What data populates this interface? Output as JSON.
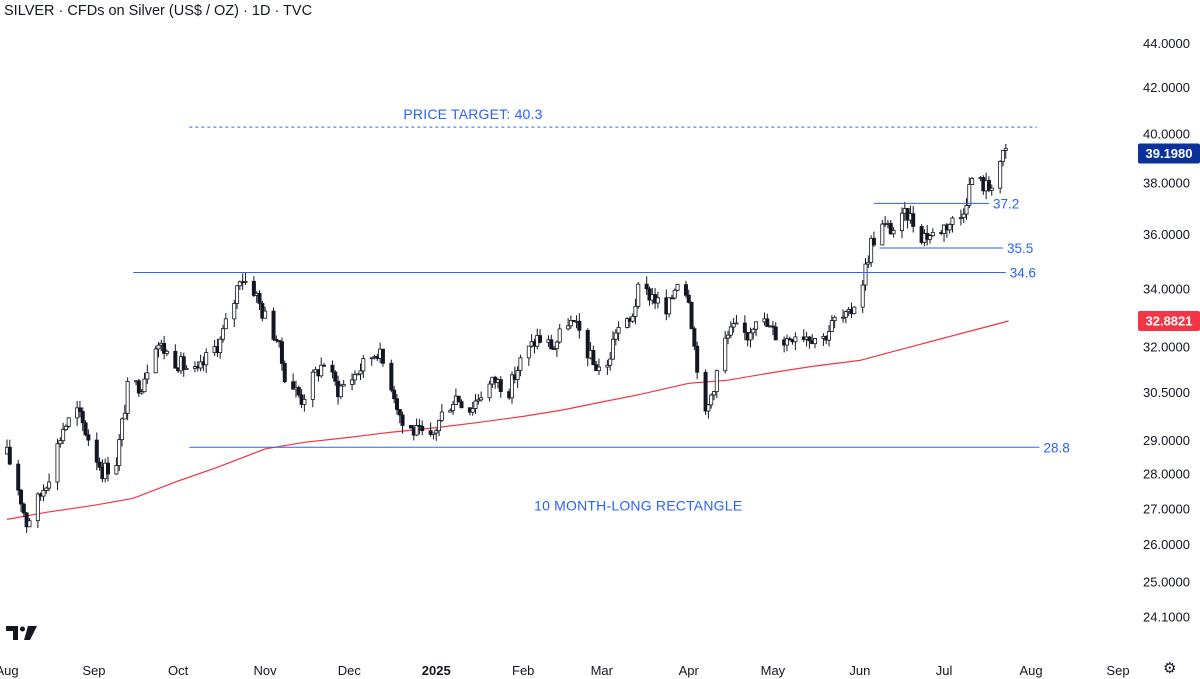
{
  "header": {
    "title": "SILVER · CFDs on Silver (US$ / OZ) · 1D · TVC"
  },
  "icons": {
    "logo": "tradingview-logo-icon",
    "settings": "settings-gear-icon"
  },
  "colors": {
    "level_line": "#2962ff",
    "ma_line": "#f23645",
    "candle": "#131722",
    "price_badge": "#0c3299",
    "ma_badge": "#f23645"
  },
  "chart_data": {
    "type": "candlestick",
    "title": "SILVER · CFDs on Silver (US$ / OZ) · 1D · TVC",
    "y_scale": "log",
    "ylim": [
      23.75,
      45.0
    ],
    "yticks": [
      "44.0000",
      "42.0000",
      "40.0000",
      "38.0000",
      "36.0000",
      "34.0000",
      "32.0000",
      "30.5000",
      "29.0000",
      "28.0000",
      "27.0000",
      "26.0000",
      "25.0000",
      "24.1000"
    ],
    "xticks": [
      {
        "label": "Aug",
        "date": "2024-08-01"
      },
      {
        "label": "Sep",
        "date": "2024-09-01"
      },
      {
        "label": "Oct",
        "date": "2024-10-01"
      },
      {
        "label": "Nov",
        "date": "2024-11-01"
      },
      {
        "label": "Dec",
        "date": "2024-12-01"
      },
      {
        "label": "2025",
        "date": "2025-01-01",
        "bold": true
      },
      {
        "label": "Feb",
        "date": "2025-02-01"
      },
      {
        "label": "Mar",
        "date": "2025-03-01"
      },
      {
        "label": "Apr",
        "date": "2025-04-01"
      },
      {
        "label": "May",
        "date": "2025-05-01"
      },
      {
        "label": "Jun",
        "date": "2025-06-01"
      },
      {
        "label": "Jul",
        "date": "2025-07-01"
      },
      {
        "label": "Aug",
        "date": "2025-08-01"
      },
      {
        "label": "Sep",
        "date": "2025-09-01"
      }
    ],
    "price_badges": [
      {
        "label": "39.1980",
        "value": 39.198,
        "color": "#0c3299"
      },
      {
        "label": "32.8821",
        "value": 32.8821,
        "color": "#f23645"
      }
    ],
    "levels": [
      {
        "label": "PRICE TARGET: 40.3",
        "value": 40.3,
        "style": "dashed",
        "from": "2024-10-05",
        "to": "2025-08-03"
      },
      {
        "label": "37.2",
        "value": 37.2,
        "style": "solid",
        "from": "2025-06-06",
        "to": "2025-07-17"
      },
      {
        "label": "35.5",
        "value": 35.5,
        "style": "solid",
        "from": "2025-06-08",
        "to": "2025-07-22"
      },
      {
        "label": "34.6",
        "value": 34.6,
        "style": "solid",
        "from": "2024-09-15",
        "to": "2025-07-23"
      },
      {
        "label": "28.8",
        "value": 28.8,
        "style": "solid",
        "from": "2024-10-05",
        "to": "2025-08-04"
      }
    ],
    "annotations": [
      {
        "text": "10 MONTH-LONG RECTANGLE",
        "date": "2024-12-22",
        "value": 27.1
      }
    ],
    "moving_average": [
      [
        "2024-08-01",
        26.7
      ],
      [
        "2024-08-15",
        26.9
      ],
      [
        "2024-09-01",
        27.1
      ],
      [
        "2024-09-15",
        27.3
      ],
      [
        "2024-10-01",
        27.8
      ],
      [
        "2024-10-15",
        28.2
      ],
      [
        "2024-11-01",
        28.75
      ],
      [
        "2024-11-15",
        28.95
      ],
      [
        "2024-12-01",
        29.1
      ],
      [
        "2024-12-15",
        29.25
      ],
      [
        "2025-01-01",
        29.4
      ],
      [
        "2025-01-15",
        29.55
      ],
      [
        "2025-02-01",
        29.75
      ],
      [
        "2025-02-15",
        29.95
      ],
      [
        "2025-03-01",
        30.2
      ],
      [
        "2025-03-15",
        30.45
      ],
      [
        "2025-04-01",
        30.8
      ],
      [
        "2025-04-15",
        30.9
      ],
      [
        "2025-05-01",
        31.15
      ],
      [
        "2025-05-15",
        31.35
      ],
      [
        "2025-06-01",
        31.55
      ],
      [
        "2025-06-15",
        31.9
      ],
      [
        "2025-07-01",
        32.3
      ],
      [
        "2025-07-24",
        32.88
      ]
    ],
    "ohlc_path": [
      [
        "2024-08-01",
        28.6
      ],
      [
        "2024-08-05",
        27.6
      ],
      [
        "2024-08-08",
        26.6
      ],
      [
        "2024-08-13",
        27.4
      ],
      [
        "2024-08-16",
        28.0
      ],
      [
        "2024-08-21",
        29.4
      ],
      [
        "2024-08-26",
        29.9
      ],
      [
        "2024-08-29",
        29.3
      ],
      [
        "2024-09-04",
        28.1
      ],
      [
        "2024-09-09",
        28.4
      ],
      [
        "2024-09-13",
        30.6
      ],
      [
        "2024-09-18",
        30.8
      ],
      [
        "2024-09-23",
        32.2
      ],
      [
        "2024-09-27",
        31.8
      ],
      [
        "2024-10-02",
        31.4
      ],
      [
        "2024-10-08",
        31.1
      ],
      [
        "2024-10-11",
        31.6
      ],
      [
        "2024-10-16",
        32.2
      ],
      [
        "2024-10-21",
        33.6
      ],
      [
        "2024-10-23",
        34.5
      ],
      [
        "2024-10-28",
        34.0
      ],
      [
        "2024-10-31",
        33.2
      ],
      [
        "2024-11-05",
        32.3
      ],
      [
        "2024-11-08",
        31.1
      ],
      [
        "2024-11-14",
        30.3
      ],
      [
        "2024-11-19",
        31.1
      ],
      [
        "2024-11-22",
        31.5
      ],
      [
        "2024-11-27",
        30.6
      ],
      [
        "2024-12-02",
        31.0
      ],
      [
        "2024-12-06",
        31.4
      ],
      [
        "2024-12-11",
        31.9
      ],
      [
        "2024-12-16",
        30.8
      ],
      [
        "2024-12-20",
        29.5
      ],
      [
        "2024-12-24",
        29.3
      ],
      [
        "2024-12-30",
        29.0
      ],
      [
        "2025-01-03",
        29.8
      ],
      [
        "2025-01-08",
        30.4
      ],
      [
        "2025-01-13",
        30.0
      ],
      [
        "2025-01-17",
        30.5
      ],
      [
        "2025-01-22",
        30.9
      ],
      [
        "2025-01-27",
        30.6
      ],
      [
        "2025-01-31",
        31.5
      ],
      [
        "2025-02-06",
        32.3
      ],
      [
        "2025-02-12",
        32.0
      ],
      [
        "2025-02-17",
        32.9
      ],
      [
        "2025-02-21",
        32.5
      ],
      [
        "2025-02-26",
        31.4
      ],
      [
        "2025-03-03",
        31.3
      ],
      [
        "2025-03-06",
        32.6
      ],
      [
        "2025-03-11",
        32.8
      ],
      [
        "2025-03-14",
        33.9
      ],
      [
        "2025-03-19",
        33.8
      ],
      [
        "2025-03-24",
        33.1
      ],
      [
        "2025-03-28",
        34.4
      ],
      [
        "2025-04-01",
        33.8
      ],
      [
        "2025-04-03",
        32.0
      ],
      [
        "2025-04-07",
        29.7
      ],
      [
        "2025-04-10",
        30.8
      ],
      [
        "2025-04-14",
        32.2
      ],
      [
        "2025-04-17",
        32.6
      ],
      [
        "2025-04-22",
        32.4
      ],
      [
        "2025-04-25",
        33.1
      ],
      [
        "2025-04-30",
        32.6
      ],
      [
        "2025-05-05",
        32.2
      ],
      [
        "2025-05-09",
        32.5
      ],
      [
        "2025-05-14",
        32.4
      ],
      [
        "2025-05-19",
        32.3
      ],
      [
        "2025-05-23",
        32.9
      ],
      [
        "2025-05-28",
        33.0
      ],
      [
        "2025-06-02",
        34.3
      ],
      [
        "2025-06-05",
        35.7
      ],
      [
        "2025-06-09",
        36.3
      ],
      [
        "2025-06-13",
        36.2
      ],
      [
        "2025-06-18",
        36.8
      ],
      [
        "2025-06-23",
        36.0
      ],
      [
        "2025-06-27",
        36.0
      ],
      [
        "2025-07-02",
        36.4
      ],
      [
        "2025-07-07",
        36.7
      ],
      [
        "2025-07-11",
        38.2
      ],
      [
        "2025-07-14",
        38.0
      ],
      [
        "2025-07-17",
        37.8
      ],
      [
        "2025-07-21",
        38.9
      ],
      [
        "2025-07-23",
        39.2
      ]
    ]
  }
}
